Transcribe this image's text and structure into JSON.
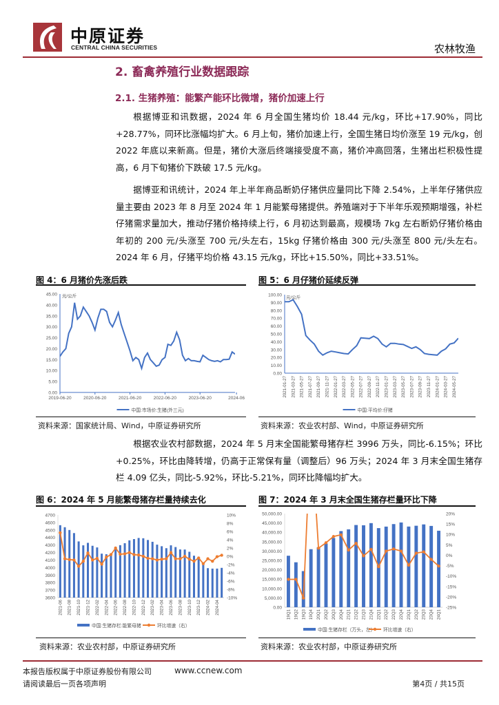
{
  "header": {
    "logo_cn": "中原证券",
    "logo_en": "CENTRAL CHINA SECURITIES",
    "sector": "农林牧渔",
    "brand_color": "#a8353a"
  },
  "section_title": "2. 畜禽养殖行业数据跟踪",
  "subsection_title": "2.1. 生猪养殖：能繁产能环比微增，猪价加速上行",
  "paragraphs": [
    "根据博亚和讯数据，2024 年 6 月全国生猪均价 18.44 元/kg，环比+17.90%，同比+28.77%，同环比涨幅均扩大。6 月上旬，猪价加速上行，全国生猪日均价涨至 19 元/kg，创 2022 年底以来新高。但是，猪价大涨后终端接受度不高，猪价冲高回落，生猪出栏积极性提高，6 月下旬猪价下跌破 17.5 元/kg。",
    "据博亚和讯统计，2024 年上半年商品断奶仔猪供应量同比下降 2.54%，上半年仔猪供应量主要由 2023 年 8 月至 2024 年 1 月能繁母猪提供。养殖端对于下半年乐观预期增强，补栏仔猪需求量加大，推动仔猪价格持续上行，6 月初达到最高，规模场 7kg 左右断奶仔猪价格由年初的 200 元/头涨至 700 元/头左右，15kg 仔猪价格由 300 元/头涨至 800 元/头左右。2024 年 6 月，仔猪平均价格 43.15 元/kg，环比+15.50%，同比+33.51%。",
    "根据农业农村部数据，2024 年 5 月末全国能繁母猪存栏 3996 万头，同比-6.15%；环比+0.25%，环比由降转增，仍高于正常保有量（调整后）96 万头；2024 年 3 月末全国生猪存栏 4.09 亿头，同比-5.92%，环比-5.21%，同环比降幅均扩大。"
  ],
  "figures": [
    {
      "title": "图 4：6 月猪价先涨后跌",
      "source": "资料来源：国家统计局、Wind，中原证券研究所"
    },
    {
      "title": "图 5：6 月仔猪价延续反弹",
      "source": "资料来源：农业农村部、Wind，中原证券研究所"
    },
    {
      "title": "图 6：2024 年 5 月能繁母猪存栏量持续去化",
      "source": "资料来源：农业农村部，中原证券研究所"
    },
    {
      "title": "图 7：2024 年 3 月末全国生猪存栏量环比下降",
      "source": "资料来源：农业农村部，中原证券研究所"
    }
  ],
  "chart_data": [
    {
      "type": "line",
      "unit_label": "元/公斤",
      "x_tick_labels": [
        "2019-06-20",
        "2020-06-20",
        "2021-06-20",
        "2022-06-20",
        "2023-06-20",
        "2024-06"
      ],
      "x_start": "2019-06",
      "x_end": "2024-06",
      "x_interval": "month",
      "ylim": [
        0,
        45
      ],
      "y_ticks": [
        "0.00",
        "5.00",
        "10.00",
        "15.00",
        "20.00",
        "25.00",
        "30.00",
        "35.00",
        "40.00",
        "45.00"
      ],
      "series": [
        {
          "name": "中国:市场价:生猪(外三元)",
          "color": "#4472c4",
          "values": [
            16.5,
            18.5,
            20,
            27,
            30,
            41,
            33.5,
            35,
            39,
            37,
            35,
            32,
            28.5,
            34,
            38,
            38,
            37,
            32,
            30,
            33,
            36.5,
            31,
            27,
            23,
            19,
            14.5,
            16,
            15,
            11,
            16,
            18,
            15,
            13.5,
            12,
            12.5,
            15,
            16,
            22,
            21.5,
            23.5,
            27.5,
            24,
            17,
            14.5,
            15.5,
            14.5,
            14.5,
            14.2,
            14,
            17,
            16,
            15,
            14.5,
            14.2,
            14.5,
            14,
            15,
            15,
            15.2,
            18.5,
            17.5
          ]
        }
      ],
      "legend": "bottom",
      "grid": false
    },
    {
      "type": "line",
      "unit_label": "元/公斤",
      "x_tick_labels": [
        "2021-01-27",
        "2021-03-27",
        "2021-05-27",
        "2021-07-27",
        "2021-09-27",
        "2021-11-27",
        "2022-01-27",
        "2022-03-27",
        "2022-05-27",
        "2022-07-27",
        "2022-09-27",
        "2022-11-27",
        "2023-01-27",
        "2023-03-27",
        "2023-05-27",
        "2023-07-27",
        "2023-09-27",
        "2023-11-27",
        "2024-01-27",
        "2024-03-27",
        "2024-05-27"
      ],
      "x_start": "2021-01",
      "x_end": "2024-06",
      "x_interval": "month",
      "ylim": [
        0,
        100
      ],
      "y_ticks": [
        "0.00",
        "10.00",
        "20.00",
        "30.00",
        "40.00",
        "50.00",
        "60.00",
        "70.00",
        "80.00",
        "90.00",
        "100.00"
      ],
      "series": [
        {
          "name": "中国:平均价:仔猪",
          "color": "#4472c4",
          "values": [
            91,
            91,
            93.5,
            85,
            75,
            48,
            42,
            37,
            28,
            23,
            26,
            28,
            27,
            26,
            25,
            24.5,
            30,
            35,
            45,
            44.5,
            44,
            47,
            44,
            37,
            33.5,
            38,
            38,
            37,
            36.5,
            34,
            31.5,
            33.5,
            30,
            25,
            24,
            23.5,
            23,
            28,
            31,
            37,
            38.5,
            44.5
          ]
        }
      ],
      "legend": "bottom",
      "grid": false
    },
    {
      "type": "bar+line",
      "categories": [
        "2021-06",
        "2021-07",
        "2021-08",
        "2021-09",
        "2021-10",
        "2021-11",
        "2021-12",
        "2022-01",
        "2022-02",
        "2022-03",
        "2022-04",
        "2022-05",
        "2022-06",
        "2022-07",
        "2022-08",
        "2022-09",
        "2022-10",
        "2022-11",
        "2022-12",
        "2023-01",
        "2023-02",
        "2023-03",
        "2023-04",
        "2023-05",
        "2023-06",
        "2023-07",
        "2023-08",
        "2023-09",
        "2023-10",
        "2023-11",
        "2023-12",
        "2024-01",
        "2024-02",
        "2024-03",
        "2024-04",
        "2024-05"
      ],
      "x_tick_labels": [
        "2021-06",
        "2021-08",
        "2021-10",
        "2021-12",
        "2022-02",
        "2022-04",
        "2022-06",
        "2022-08",
        "2022-10",
        "2022-12",
        "2023-02",
        "2023-04",
        "2023-06",
        "2023-08",
        "2023-10",
        "2023-12",
        "2024-02",
        "2024-04"
      ],
      "ylim": [
        3600,
        4700
      ],
      "y_ticks": [
        "3600",
        "3700",
        "3800",
        "3900",
        "4000",
        "4100",
        "4200",
        "4300",
        "4400",
        "4500",
        "4600",
        "4700"
      ],
      "y2lim": [
        -10,
        10
      ],
      "y2_ticks": [
        "-10%",
        "-8%",
        "-6%",
        "-4%",
        "-2%",
        "0%",
        "2%",
        "4%",
        "6%",
        "8%",
        "10%"
      ],
      "series": [
        {
          "name": "中国:生猪存栏:能繁母猪",
          "type": "bar",
          "axis": "left",
          "color": "#4472c4",
          "values": [
            4564,
            4537,
            4500,
            4459,
            4348,
            4296,
            4329,
            4290,
            4268,
            4185,
            4177,
            4192,
            4277,
            4298,
            4324,
            4362,
            4379,
            4394,
            4390,
            4367,
            4343,
            4305,
            4284,
            4258,
            4296,
            4273,
            4241,
            4240,
            4210,
            4158,
            4142,
            4067,
            3992,
            3986,
            3986,
            3996
          ]
        },
        {
          "name": "环比增速（右）",
          "type": "line",
          "axis": "right",
          "color": "#ed7d31",
          "values": [
            5.7,
            -0.6,
            -0.8,
            -0.9,
            -2.4,
            -1.2,
            0.8,
            -0.9,
            -0.5,
            -1.9,
            -0.2,
            0.4,
            2.0,
            0.5,
            0.6,
            0.9,
            0.4,
            0.3,
            0.0,
            -0.5,
            -0.6,
            -0.9,
            -0.7,
            -0.6,
            0.9,
            -0.6,
            -0.6,
            0.0,
            -0.7,
            -1.2,
            -0.4,
            -1.8,
            -0.6,
            -1.2,
            -0.1,
            0.25
          ]
        }
      ],
      "legend": "bottom",
      "grid": false
    },
    {
      "type": "bar+line",
      "categories": [
        "19Q1",
        "19Q2",
        "19Q3",
        "19Q4",
        "20Q1",
        "20Q2",
        "20Q3",
        "20Q4",
        "21Q1",
        "21Q2",
        "21Q3",
        "21Q4",
        "22Q1",
        "22Q2",
        "22Q3",
        "22Q4",
        "23Q1",
        "23Q2",
        "23Q3",
        "23Q4",
        "24Q1"
      ],
      "x_tick_labels": [
        "19Q1",
        "19Q2",
        "19Q3",
        "19Q4",
        "20Q1",
        "20Q2",
        "20Q3",
        "20Q4",
        "21Q1",
        "21Q2",
        "21Q3",
        "21Q4",
        "22Q1",
        "22Q2",
        "22Q3",
        "22Q4",
        "23Q1",
        "23Q2",
        "23Q3",
        "23Q4",
        "24Q1"
      ],
      "ylim": [
        0,
        50000
      ],
      "y_ticks": [
        "0.00",
        "5,000.00",
        "10,000.00",
        "15,000.00",
        "20,000.00",
        "25,000.00",
        "30,000.00",
        "35,000.00",
        "40,000.00",
        "45,000.00",
        "50,000.00"
      ],
      "y2lim": [
        -25,
        20
      ],
      "y2_ticks": [
        "-25%",
        "-20%",
        "-15%",
        "-10%",
        "-5%",
        "0%",
        "5%",
        "10%",
        "15%",
        "20%"
      ],
      "series": [
        {
          "name": "中国:生猪存栏（万头，左）",
          "type": "bar",
          "axis": "left",
          "color": "#4472c4",
          "values": [
            27500,
            24000,
            19300,
            31000,
            32000,
            34000,
            37000,
            40650,
            41600,
            43900,
            43760,
            44920,
            42250,
            43060,
            44400,
            45260,
            43090,
            43520,
            44230,
            43420,
            40850
          ]
        },
        {
          "name": "环比增速（右）",
          "type": "line",
          "axis": "right",
          "color": "#ed7d31",
          "values": [
            -11.6,
            -11.6,
            -20.6,
            60.8,
            3.4,
            6.0,
            9.0,
            9.8,
            2.5,
            5.7,
            -0.3,
            2.8,
            -5.5,
            2.0,
            3.0,
            2.0,
            -4.8,
            1.0,
            1.6,
            -2.0,
            -5.21
          ]
        }
      ],
      "legend": "bottom",
      "grid": false
    }
  ],
  "footer": {
    "copyright": "本报告版权属于中原证券股份有限公司",
    "website": "www.ccnew.com",
    "disclaimer": "请阅读最后一页各项声明",
    "page": "第4页 / 共15页"
  }
}
